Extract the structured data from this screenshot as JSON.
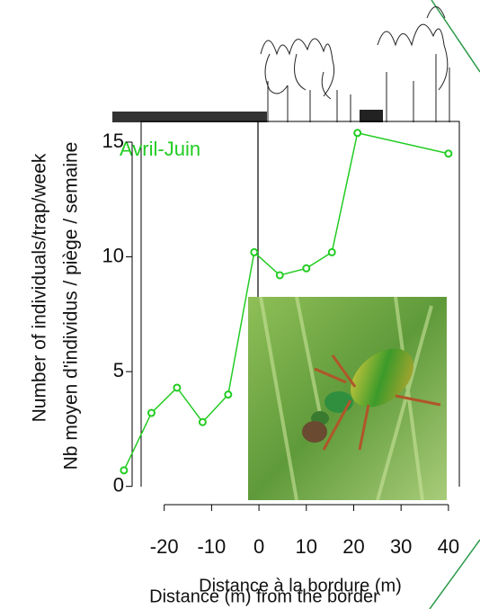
{
  "chart_data": {
    "type": "line",
    "x_label": "Distance à la bordure (m)",
    "x_label_2": "Distance (m) from the border",
    "y_label": "Number of individuals/trap/week",
    "y_label_2": "Nb moyen d'individus / piège / semaine",
    "x": [
      -28.5,
      -22.7,
      -17.3,
      -11.9,
      -6.5,
      -1,
      4.4,
      10,
      15.4,
      20.8,
      40
    ],
    "series": [
      {
        "name": "Avril-Juin",
        "color": "#22cc22",
        "values": [
          0.7,
          3.2,
          4.3,
          2.8,
          4.0,
          10.2,
          9.2,
          9.5,
          10.2,
          15.4,
          14.5
        ]
      }
    ],
    "xlim": [
      -30,
      42.3
    ],
    "ylim": [
      -0.6,
      15.9
    ],
    "xticks": [
      -20,
      -10,
      0,
      10,
      20,
      30,
      40
    ],
    "yticks": [
      0,
      5,
      10,
      15
    ]
  }
}
